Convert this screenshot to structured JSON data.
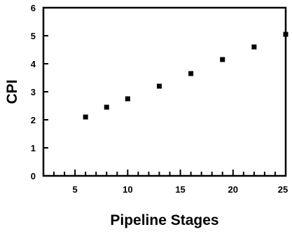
{
  "chart_data": {
    "type": "scatter",
    "title": "",
    "xlabel": "Pipeline Stages",
    "ylabel": "CPI",
    "xlim": [
      2,
      25
    ],
    "ylim": [
      0,
      6
    ],
    "x_ticks": [
      5,
      10,
      15,
      20,
      25
    ],
    "x_tick_labels": [
      "5",
      "10",
      "15",
      "20",
      "25"
    ],
    "y_ticks": [
      0,
      1,
      2,
      3,
      4,
      5,
      6
    ],
    "y_tick_labels": [
      "0",
      "1",
      "2",
      "3",
      "4",
      "5",
      "6"
    ],
    "x_minor_tick_step": 1,
    "grid": false,
    "legend": "none",
    "marker_color": "#000000",
    "series": [
      {
        "x": [
          6,
          8,
          10,
          13,
          16,
          19,
          22,
          25
        ],
        "y": [
          2.1,
          2.45,
          2.75,
          3.2,
          3.65,
          4.15,
          4.6,
          5.05
        ]
      }
    ]
  }
}
